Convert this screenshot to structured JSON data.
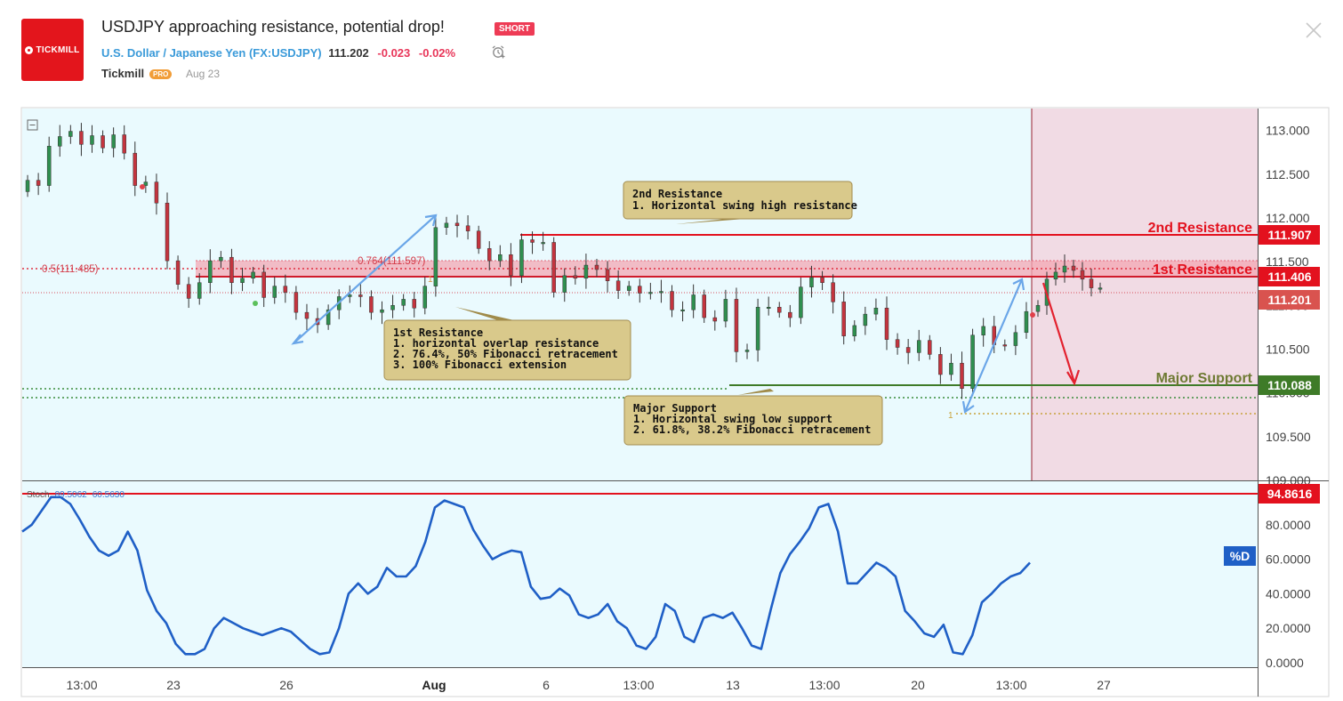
{
  "header": {
    "title": "USDJPY approaching resistance, potential drop!",
    "badge": "SHORT",
    "symbol_name": "U.S. Dollar / Japanese Yen",
    "symbol_code": "(FX:USDJPY)",
    "price": "111.202",
    "change": "-0.023",
    "change_pct": "-0.02%",
    "author": "Tickmill",
    "author_badge": "PRO",
    "date": "Aug 23",
    "logo_text": "TICKMILL"
  },
  "chart_data": {
    "type": "candlestick",
    "price_axis": {
      "min": 109.0,
      "max": 113.25,
      "ticks": [
        "113.000",
        "112.500",
        "112.000",
        "111.500",
        "111.000",
        "110.500",
        "110.000",
        "109.500",
        "109.000"
      ]
    },
    "time_axis": [
      "13:00",
      "23",
      "26",
      "Aug",
      "6",
      "13:00",
      "13",
      "13:00",
      "20",
      "13:00",
      "27"
    ],
    "price_labels": {
      "second_resistance": "111.907",
      "first_resistance": "111.406",
      "current": "111.201",
      "major_support": "110.088"
    },
    "level_labels": {
      "second_resistance": "2nd Resistance",
      "first_resistance": "1st Resistance",
      "major_support": "Major Support"
    },
    "fib_labels": {
      "fib_05": "0.5(111.485)",
      "fib_0764": "0.764(111.597)",
      "one_a": "1",
      "one_b": "1"
    },
    "annotations": {
      "second_resistance_title": "2nd Resistance",
      "second_resistance_line1": "1. Horizontal swing high resistance",
      "first_resistance_title": "1st Resistance",
      "first_resistance_line1": "1. horizontal overlap resistance",
      "first_resistance_line2": "2. 76.4%, 50% Fibonacci retracement",
      "first_resistance_line3": "3. 100% Fibonacci extension",
      "support_title": "Major Support",
      "support_line1": "1. Horizontal swing low support",
      "support_line2": "2. 61.8%, 38.2% Fibonacci retracement"
    },
    "candles": [
      112.43,
      112.37,
      112.82,
      112.93,
      112.99,
      112.84,
      112.94,
      112.8,
      112.95,
      112.74,
      112.37,
      112.41,
      112.17,
      111.51,
      111.24,
      111.08,
      111.26,
      111.51,
      111.55,
      111.26,
      111.31,
      111.38,
      111.09,
      111.22,
      111.15,
      110.92,
      110.85,
      110.78,
      110.95,
      111.1,
      111.12,
      111.1,
      110.92,
      110.95,
      111.0,
      111.07,
      110.97,
      111.22,
      111.89,
      111.94,
      111.91,
      111.85,
      111.65,
      111.51,
      111.58,
      111.34,
      111.75,
      111.72,
      111.72,
      111.15,
      111.34,
      111.31,
      111.46,
      111.41,
      111.28,
      111.17,
      111.22,
      111.14,
      111.15,
      111.16,
      110.95,
      110.95,
      111.12,
      110.86,
      110.82,
      111.07,
      110.47,
      110.49,
      110.98,
      110.98,
      110.92,
      110.86,
      111.21,
      111.32,
      111.26,
      111.04,
      110.65,
      110.77,
      110.9,
      110.97,
      110.61,
      110.52,
      110.46,
      110.6,
      110.44,
      110.21,
      110.34,
      110.05,
      110.66,
      110.76,
      110.55,
      110.54,
      110.69,
      110.93
    ],
    "candles_after": [
      111.0,
      111.3,
      111.38,
      111.45,
      111.4,
      111.3,
      111.2,
      111.2
    ],
    "stochastic": {
      "label": "Stoch",
      "value1": "89.5062",
      "value2": "60.5630",
      "ticks": [
        "80.0000",
        "60.0000",
        "40.0000",
        "20.0000",
        "0.0000"
      ],
      "level_label": "94.8616",
      "series_label": "%D",
      "values": [
        76,
        80,
        88,
        96,
        96,
        92,
        83,
        73,
        65,
        62,
        65,
        76,
        65,
        42,
        30,
        23,
        11,
        5,
        5,
        8,
        20,
        26,
        23,
        20,
        18,
        16,
        18,
        20,
        18,
        13,
        8,
        5,
        6,
        20,
        40,
        46,
        40,
        44,
        55,
        50,
        50,
        56,
        70,
        90,
        94,
        92,
        90,
        77,
        68,
        60,
        63,
        65,
        64,
        44,
        37,
        38,
        43,
        39,
        28,
        26,
        28,
        34,
        24,
        20,
        10,
        8,
        15,
        34,
        30,
        15,
        12,
        26,
        28,
        26,
        29,
        20,
        10,
        8,
        31,
        52,
        63,
        70,
        78,
        90,
        92,
        76,
        46,
        46,
        52,
        58,
        55,
        50,
        30,
        24,
        17,
        15,
        22,
        6,
        5,
        16,
        35,
        40,
        46,
        50,
        52,
        58
      ],
      "ylim": [
        0,
        100
      ]
    }
  }
}
